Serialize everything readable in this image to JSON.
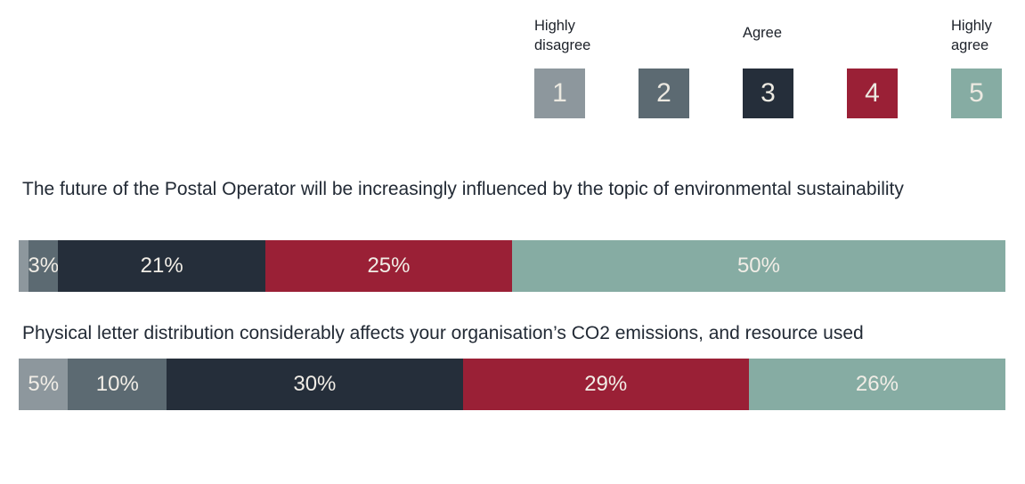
{
  "colors": {
    "rating1": "#8d979d",
    "rating2": "#5c6a72",
    "rating3": "#252e3a",
    "rating4": "#9a2036",
    "rating5": "#86aca3",
    "bar_label_text": "#f1ede6",
    "title_text": "#222a35"
  },
  "legend": {
    "items": [
      {
        "number": "1",
        "annotation": "Highly disagree",
        "color": "#8d979d"
      },
      {
        "number": "2",
        "annotation": "",
        "color": "#5c6a72"
      },
      {
        "number": "3",
        "annotation": "Agree",
        "color": "#252e3a"
      },
      {
        "number": "4",
        "annotation": "",
        "color": "#9a2036"
      },
      {
        "number": "5",
        "annotation": "Highly agree",
        "color": "#86aca3"
      }
    ]
  },
  "questions": [
    {
      "title": "The future of the Postal Operator will be increasingly influenced by the topic of environmental sustainability",
      "segments": [
        {
          "rating": 1,
          "value": 1,
          "label": "",
          "color": "#8d979d"
        },
        {
          "rating": 2,
          "value": 3,
          "label": "3%",
          "color": "#5c6a72"
        },
        {
          "rating": 3,
          "value": 21,
          "label": "21%",
          "color": "#252e3a"
        },
        {
          "rating": 4,
          "value": 25,
          "label": "25%",
          "color": "#9a2036"
        },
        {
          "rating": 5,
          "value": 50,
          "label": "50%",
          "color": "#86aca3"
        }
      ]
    },
    {
      "title": "Physical letter distribution considerably affects your organisation’s CO2 emissions, and resource used",
      "segments": [
        {
          "rating": 1,
          "value": 5,
          "label": "5%",
          "color": "#8d979d"
        },
        {
          "rating": 2,
          "value": 10,
          "label": "10%",
          "color": "#5c6a72"
        },
        {
          "rating": 3,
          "value": 30,
          "label": "30%",
          "color": "#252e3a"
        },
        {
          "rating": 4,
          "value": 29,
          "label": "29%",
          "color": "#9a2036"
        },
        {
          "rating": 5,
          "value": 26,
          "label": "26%",
          "color": "#86aca3"
        }
      ]
    }
  ],
  "chart_data": {
    "type": "bar",
    "variant": "horizontal-stacked-100-percent",
    "unit": "%",
    "xlim": [
      0,
      100
    ],
    "grid": false,
    "legend_position": "top-right",
    "legend_scale": [
      "1",
      "2",
      "3",
      "4",
      "5"
    ],
    "legend_scale_annotations": {
      "1": "Highly disagree",
      "3": "Agree",
      "5": "Highly agree"
    },
    "categories": [
      "The future of the Postal Operator will be increasingly influenced by the topic of environmental sustainability",
      "Physical letter distribution considerably affects your organisation’s CO2 emissions, and resource used"
    ],
    "series": [
      {
        "name": "1 - Highly disagree",
        "color": "#8d979d",
        "values": [
          1,
          5
        ]
      },
      {
        "name": "2",
        "color": "#5c6a72",
        "values": [
          3,
          10
        ]
      },
      {
        "name": "3 - Agree",
        "color": "#252e3a",
        "values": [
          21,
          30
        ]
      },
      {
        "name": "4",
        "color": "#9a2036",
        "values": [
          25,
          29
        ]
      },
      {
        "name": "5 - Highly agree",
        "color": "#86aca3",
        "values": [
          50,
          26
        ]
      }
    ]
  }
}
